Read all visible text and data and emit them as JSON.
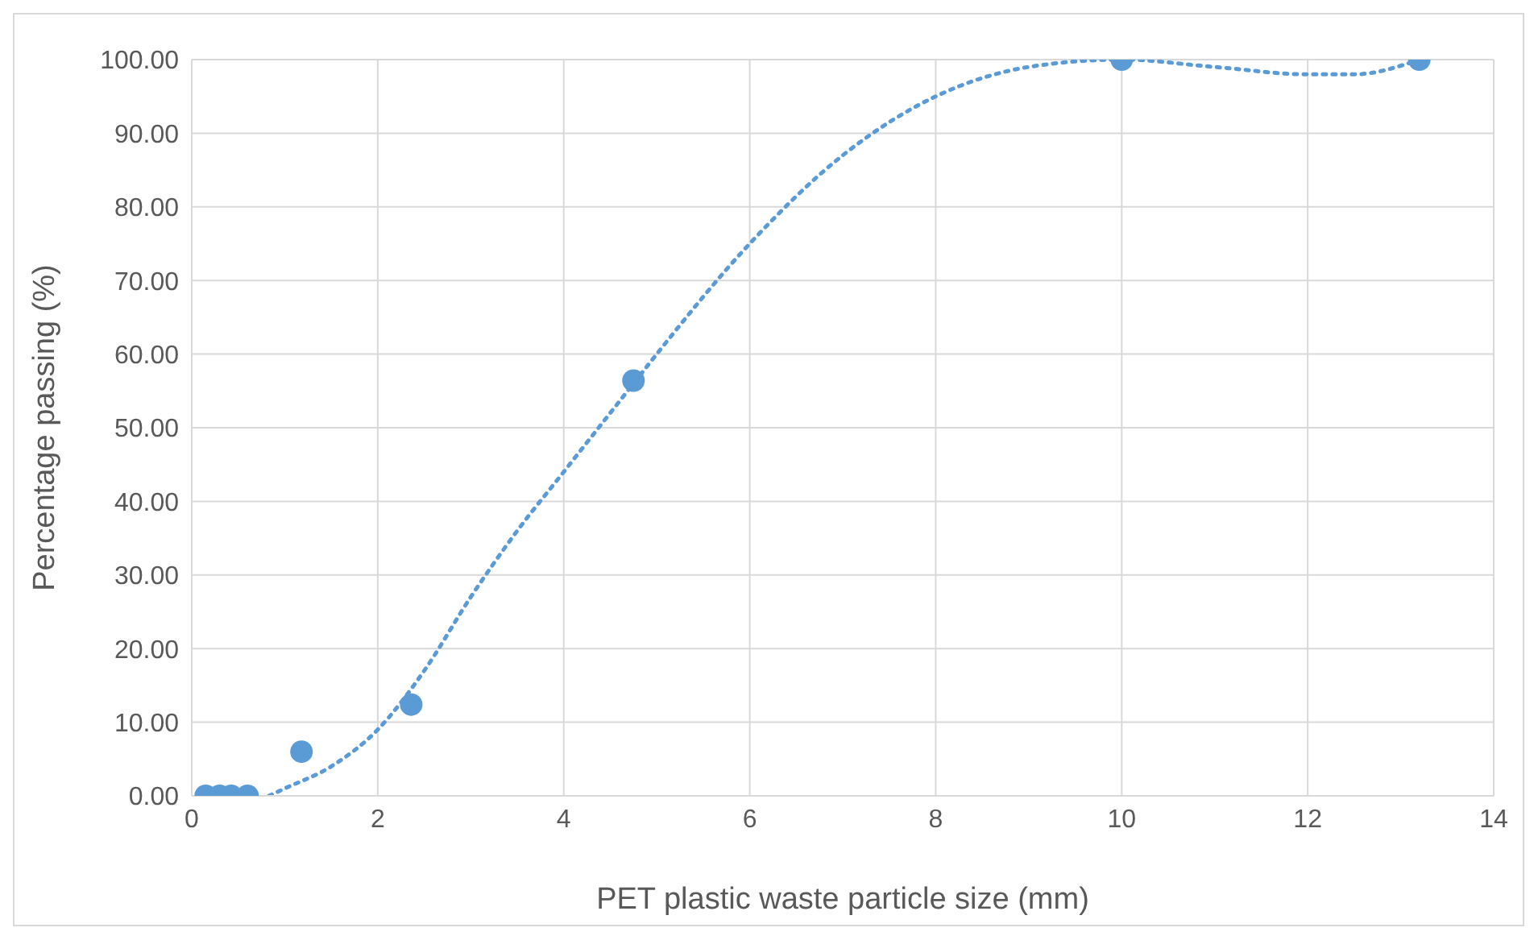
{
  "chart_data": {
    "type": "scatter",
    "xlabel": "PET plastic waste particle size (mm)",
    "ylabel": "Percentage passing (%)",
    "xlim": [
      0,
      14
    ],
    "xticks": [
      0,
      2,
      4,
      6,
      8,
      10,
      12,
      14
    ],
    "ylim": [
      0,
      100
    ],
    "yticks": [
      {
        "value": 0,
        "label": "0.00"
      },
      {
        "value": 10,
        "label": "10.00"
      },
      {
        "value": 20,
        "label": "20.00"
      },
      {
        "value": 30,
        "label": "30.00"
      },
      {
        "value": 40,
        "label": "40.00"
      },
      {
        "value": 50,
        "label": "50.00"
      },
      {
        "value": 60,
        "label": "60.00"
      },
      {
        "value": 70,
        "label": "70.00"
      },
      {
        "value": 80,
        "label": "80.00"
      },
      {
        "value": 90,
        "label": "90.00"
      },
      {
        "value": 100,
        "label": "100.00"
      }
    ],
    "grid": true,
    "legend": false,
    "series": [
      {
        "color": "#5b9bd5",
        "marker": "circle",
        "x": [
          0.15,
          0.3,
          0.425,
          0.6,
          1.18,
          2.36,
          4.75,
          10,
          13.2
        ],
        "values": [
          0,
          0,
          0,
          0,
          6,
          12.4,
          56.4,
          100,
          100
        ]
      },
      {
        "type": "line",
        "color": "#5b9bd5",
        "marker": "none",
        "line_style": "dotted",
        "x": [
          0.83,
          1,
          1.5,
          2,
          2.5,
          3,
          3.5,
          4,
          4.75,
          5,
          6,
          7,
          8,
          9,
          10,
          11,
          12,
          12.5,
          13.2
        ],
        "values": [
          0,
          1,
          4,
          9,
          17,
          27,
          36,
          44,
          56,
          60,
          75,
          87,
          95,
          99,
          100,
          99,
          98,
          98,
          100
        ]
      }
    ]
  }
}
